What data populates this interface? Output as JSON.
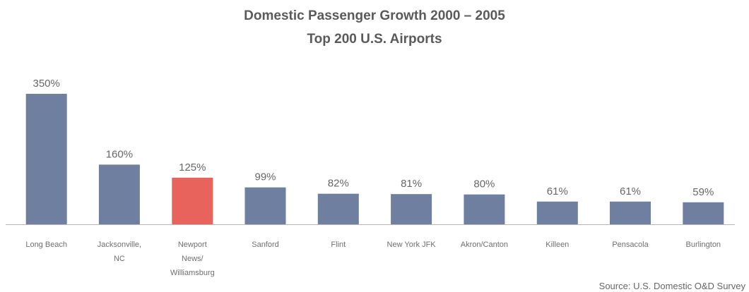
{
  "chart_data": {
    "type": "bar",
    "title": "Domestic Passenger Growth 2000 – 2005",
    "subtitle": "Top 200 U.S. Airports",
    "categories": [
      [
        "Long Beach"
      ],
      [
        "Jacksonville,",
        "NC"
      ],
      [
        "Newport",
        "News/",
        "Williamsburg"
      ],
      [
        "Sanford"
      ],
      [
        "Flint"
      ],
      [
        "New York JFK"
      ],
      [
        "Akron/Canton"
      ],
      [
        "Killeen"
      ],
      [
        "Pensacola"
      ],
      [
        "Burlington"
      ]
    ],
    "values": [
      350,
      160,
      125,
      99,
      82,
      81,
      80,
      61,
      61,
      59
    ],
    "value_labels": [
      "350%",
      "160%",
      "125%",
      "99%",
      "82%",
      "81%",
      "80%",
      "61%",
      "61%",
      "59%"
    ],
    "highlight_index": 2,
    "ylim": [
      0,
      350
    ],
    "grid": false,
    "colors": {
      "bar": "#6f7f9f",
      "highlight": "#e8635c",
      "axis": "#b8b8b8"
    },
    "source": "Source: U.S. Domestic O&D Survey"
  }
}
